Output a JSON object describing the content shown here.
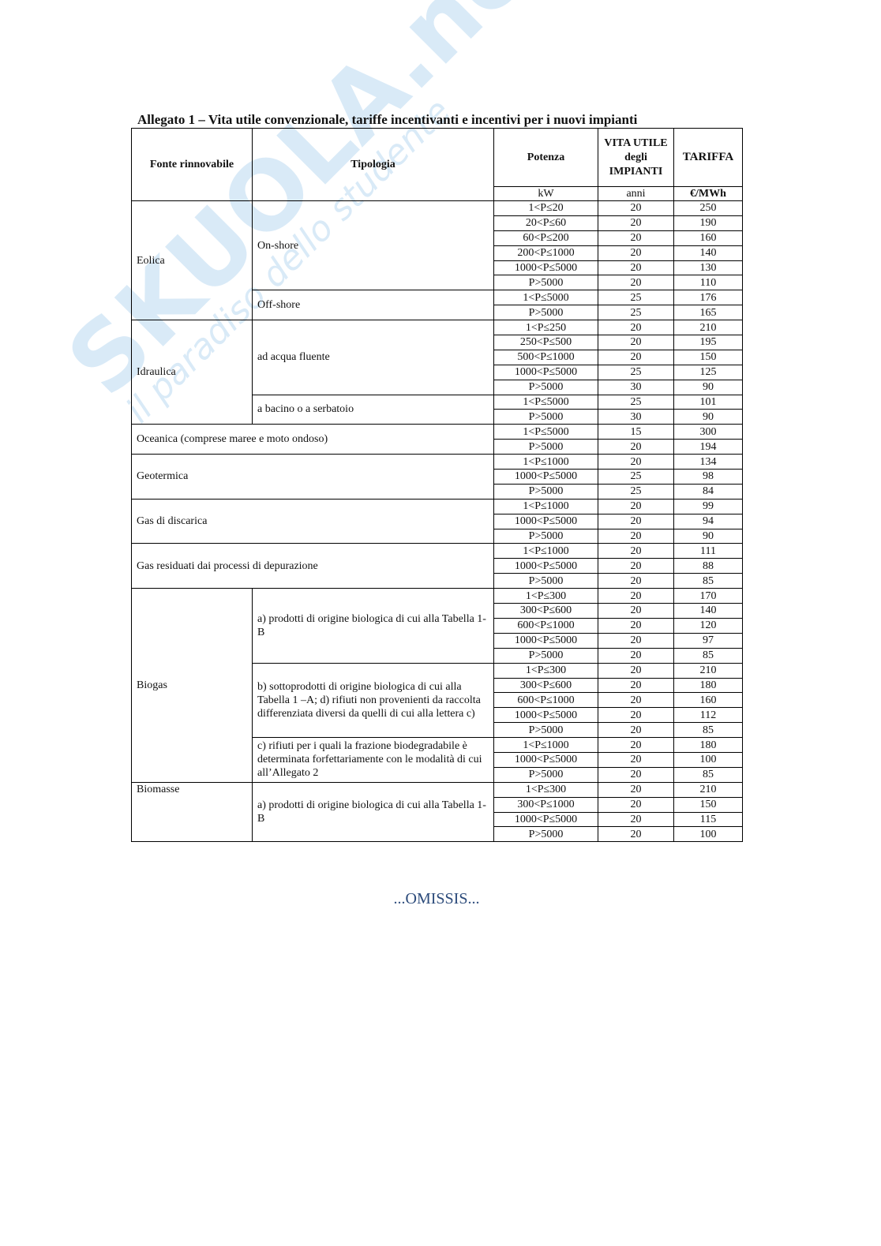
{
  "watermark": {
    "brand": "SKUOLA.net",
    "tagline": "il paradiso dello studente"
  },
  "title": "Allegato 1 – Vita utile convenzionale, tariffe incentivanti e incentivi per i nuovi impianti",
  "header": {
    "fonte": "Fonte rinnovabile",
    "tipologia": "Tipologia",
    "potenza": "Potenza",
    "vita": "VITA UTILE degli IMPIANTI",
    "tariffa": "TARIFFA"
  },
  "units": {
    "potenza": "kW",
    "vita": "anni",
    "tariffa": "€/MWh"
  },
  "groups": [
    {
      "fonte": "Eolica",
      "types": [
        {
          "name": "On-shore",
          "rows": [
            [
              "1<P≤20",
              20,
              250
            ],
            [
              "20<P≤60",
              20,
              190
            ],
            [
              "60<P≤200",
              20,
              160
            ],
            [
              "200<P≤1000",
              20,
              140
            ],
            [
              "1000<P≤5000",
              20,
              130
            ],
            [
              "P>5000",
              20,
              110
            ]
          ]
        },
        {
          "name": "Off-shore",
          "rows": [
            [
              "1<P≤5000",
              25,
              176
            ],
            [
              "P>5000",
              25,
              165
            ]
          ]
        }
      ]
    },
    {
      "fonte": "Idraulica",
      "types": [
        {
          "name": "ad acqua fluente",
          "rows": [
            [
              "1<P≤250",
              20,
              210
            ],
            [
              "250<P≤500",
              20,
              195
            ],
            [
              "500<P≤1000",
              20,
              150
            ],
            [
              "1000<P≤5000",
              25,
              125
            ],
            [
              "P>5000",
              30,
              90
            ]
          ]
        },
        {
          "name": "a bacino o a serbatoio",
          "rows": [
            [
              "1<P≤5000",
              25,
              101
            ],
            [
              "P>5000",
              30,
              90
            ]
          ]
        }
      ]
    },
    {
      "fonte": "Oceanica (comprese maree e moto ondoso)",
      "rows": [
        [
          "1<P≤5000",
          15,
          300
        ],
        [
          "P>5000",
          20,
          194
        ]
      ]
    },
    {
      "fonte": "Geotermica",
      "rows": [
        [
          "1<P≤1000",
          20,
          134
        ],
        [
          "1000<P≤5000",
          25,
          98
        ],
        [
          "P>5000",
          25,
          84
        ]
      ]
    },
    {
      "fonte": "Gas di discarica",
      "rows": [
        [
          "1<P≤1000",
          20,
          99
        ],
        [
          "1000<P≤5000",
          20,
          94
        ],
        [
          "P>5000",
          20,
          90
        ]
      ]
    },
    {
      "fonte": "Gas residuati dai processi di depurazione",
      "rows": [
        [
          "1<P≤1000",
          20,
          111
        ],
        [
          "1000<P≤5000",
          20,
          88
        ],
        [
          "P>5000",
          20,
          85
        ]
      ]
    },
    {
      "fonte": "Biogas",
      "types": [
        {
          "name": "a) prodotti di origine biologica di cui alla Tabella 1-B",
          "rows": [
            [
              "1<P≤300",
              20,
              170
            ],
            [
              "300<P≤600",
              20,
              140
            ],
            [
              "600<P≤1000",
              20,
              120
            ],
            [
              "1000<P≤5000",
              20,
              97
            ],
            [
              "P>5000",
              20,
              85
            ]
          ]
        },
        {
          "name": "b) sottoprodotti di origine biologica di cui alla Tabella 1 –A; d) rifiuti non provenienti da raccolta differenziata diversi da quelli di cui alla lettera c)",
          "rows": [
            [
              "1<P≤300",
              20,
              210
            ],
            [
              "300<P≤600",
              20,
              180
            ],
            [
              "600<P≤1000",
              20,
              160
            ],
            [
              "1000<P≤5000",
              20,
              112
            ],
            [
              "P>5000",
              20,
              85
            ]
          ]
        },
        {
          "name": "c) rifiuti per i quali la frazione biodegradabile è determinata forfettariamente con le modalità di cui all’Allegato 2",
          "rows": [
            [
              "1<P≤1000",
              20,
              180
            ],
            [
              "1000<P≤5000",
              20,
              100
            ],
            [
              "P>5000",
              20,
              85
            ]
          ]
        }
      ]
    },
    {
      "fonte": "Biomasse",
      "top": true,
      "types": [
        {
          "name": "a) prodotti di origine biologica di cui alla Tabella 1-B",
          "rows": [
            [
              "1<P≤300",
              20,
              210
            ],
            [
              "300<P≤1000",
              20,
              150
            ],
            [
              "1000<P≤5000",
              20,
              115
            ],
            [
              "P>5000",
              20,
              100
            ]
          ]
        }
      ]
    }
  ],
  "footer": "...OMISSIS..."
}
